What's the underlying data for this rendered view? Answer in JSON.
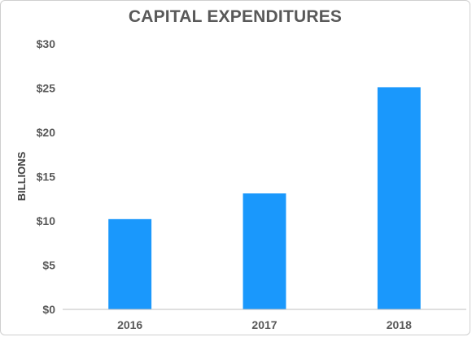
{
  "chart_data": {
    "type": "bar",
    "title": "CAPITAL EXPENDITURES",
    "xlabel": "",
    "ylabel": "BILLIONS",
    "categories": [
      "2016",
      "2017",
      "2018"
    ],
    "values": [
      10.2,
      13.1,
      25.1
    ],
    "ylim": [
      0,
      30
    ],
    "ytick_values": [
      0,
      5,
      10,
      15,
      20,
      25,
      30
    ],
    "ytick_labels": [
      "$0",
      "$5",
      "$10",
      "$15",
      "$20",
      "$25",
      "$30"
    ],
    "grid": false,
    "legend": "none",
    "colors": {
      "bar": "#1a98fc",
      "axis": "#bfbfbf",
      "text": "#595959"
    }
  }
}
